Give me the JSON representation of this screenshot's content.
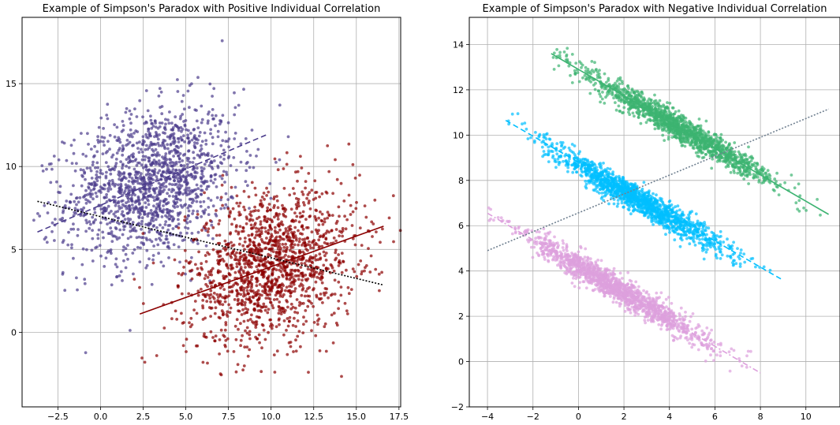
{
  "chart_data": [
    {
      "type": "scatter",
      "title": "Example of Simpson's Paradox with Positive Individual Correlation",
      "xlabel": "",
      "ylabel": "",
      "xlim": [
        -4.6,
        17.6
      ],
      "ylim": [
        -4.5,
        19.0
      ],
      "xticks": [
        -2.5,
        0.0,
        2.5,
        5.0,
        7.5,
        10.0,
        12.5,
        15.0,
        17.5
      ],
      "xtick_labels": [
        "−2.5",
        "0.0",
        "2.5",
        "5.0",
        "7.5",
        "10.0",
        "12.5",
        "15.0",
        "17.5"
      ],
      "yticks": [
        0,
        5,
        10,
        15
      ],
      "ytick_labels": [
        "0",
        "5",
        "10",
        "15"
      ],
      "grid": true,
      "series": [
        {
          "color": "#4b3c8c",
          "scatter": {
            "center": [
              3.0,
              9.0
            ],
            "sd": [
              2.5,
              2.3
            ],
            "corr": 0.25,
            "n": 1500
          },
          "trend": {
            "x": [
              -3.7,
              9.7
            ],
            "y": [
              6.05,
              11.9
            ],
            "style": "dashed"
          }
        },
        {
          "color": "#8b0000",
          "scatter": {
            "center": [
              10.0,
              4.0
            ],
            "sd": [
              2.5,
              2.3
            ],
            "corr": 0.25,
            "n": 1500
          },
          "trend": {
            "x": [
              2.3,
              16.6
            ],
            "y": [
              1.1,
              6.4
            ],
            "style": "solid"
          }
        }
      ],
      "overall_trend": {
        "x": [
          -3.7,
          16.6
        ],
        "y": [
          7.9,
          2.85
        ],
        "color": "#000000",
        "style": "dotted"
      }
    },
    {
      "type": "scatter",
      "title": "Example of Simpson's Paradox with Negative Individual Correlation",
      "xlabel": "",
      "ylabel": "",
      "xlim": [
        -4.8,
        11.5
      ],
      "ylim": [
        -2.0,
        15.2
      ],
      "xticks": [
        -4,
        -2,
        0,
        2,
        4,
        6,
        8,
        10
      ],
      "xtick_labels": [
        "−4",
        "−2",
        "0",
        "2",
        "4",
        "6",
        "8",
        "10"
      ],
      "yticks": [
        -2,
        0,
        2,
        4,
        6,
        8,
        10,
        12,
        14
      ],
      "ytick_labels": [
        "−2",
        "0",
        "2",
        "4",
        "6",
        "8",
        "10",
        "12",
        "14"
      ],
      "grid": true,
      "series": [
        {
          "color": "#3cb371",
          "scatter": {
            "x_range": [
              -1.2,
              11.0
            ],
            "slope": -0.58,
            "intercept": 12.9,
            "x_center": 4.5,
            "x_sd": 2.0,
            "noise_sd": 0.3,
            "n": 1500
          },
          "trend": {
            "x": [
              -1.2,
              11.0
            ],
            "y": [
              13.6,
              6.5
            ],
            "style": "solid"
          }
        },
        {
          "color": "#00bfff",
          "scatter": {
            "x_range": [
              -3.3,
              8.9
            ],
            "slope": -0.58,
            "intercept": 8.7,
            "x_center": 2.5,
            "x_sd": 2.0,
            "noise_sd": 0.3,
            "n": 1500
          },
          "trend": {
            "x": [
              -3.2,
              8.9
            ],
            "y": [
              10.65,
              3.65
            ],
            "style": "dashed"
          }
        },
        {
          "color": "#dda0dd",
          "scatter": {
            "x_range": [
              -4.0,
              8.0
            ],
            "slope": -0.58,
            "intercept": 4.2,
            "x_center": 1.8,
            "x_sd": 2.0,
            "noise_sd": 0.3,
            "n": 1500
          },
          "trend": {
            "x": [
              -4.0,
              8.0
            ],
            "y": [
              6.55,
              -0.5
            ],
            "style": "dashdot"
          }
        }
      ],
      "overall_trend": {
        "x": [
          -4.0,
          11.0
        ],
        "y": [
          4.9,
          11.15
        ],
        "color": "#708090",
        "style": "dotted"
      }
    }
  ]
}
